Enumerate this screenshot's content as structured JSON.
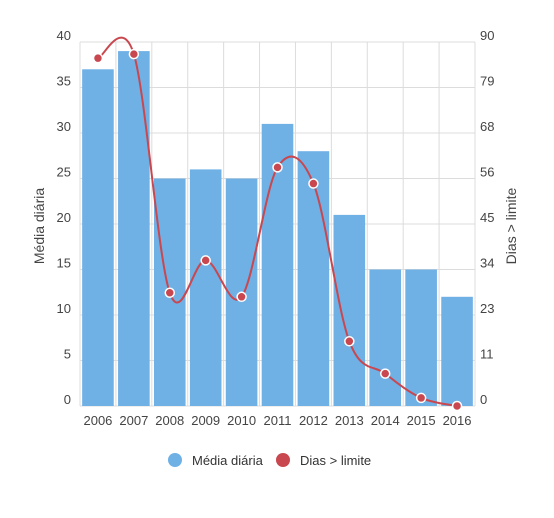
{
  "chart_data": {
    "type": "bar",
    "categories": [
      "2006",
      "2007",
      "2008",
      "2009",
      "2010",
      "2011",
      "2012",
      "2013",
      "2014",
      "2015",
      "2016"
    ],
    "series": [
      {
        "name": "Média diária",
        "type": "bar",
        "axis": "left",
        "color": "#6fb0e5",
        "values": [
          37,
          39,
          25,
          26,
          25,
          31,
          28,
          21,
          15,
          15,
          12
        ]
      },
      {
        "name": "Dias > limite",
        "type": "line",
        "axis": "right",
        "smooth": true,
        "color": "#c9474f",
        "values": [
          86,
          87,
          28,
          36,
          27,
          59,
          55,
          16,
          8,
          2,
          0
        ]
      }
    ],
    "ylabel": "Média diária",
    "y2label": "Dias > limite",
    "ylim": [
      0,
      40
    ],
    "y2lim": [
      0,
      90
    ],
    "yticks": [
      "0",
      "5",
      "10",
      "15",
      "20",
      "25",
      "30",
      "35",
      "40"
    ],
    "y2ticks": [
      "0",
      "11",
      "23",
      "34",
      "45",
      "56",
      "68",
      "79",
      "90"
    ],
    "grid": true,
    "legend_position": "bottom"
  }
}
